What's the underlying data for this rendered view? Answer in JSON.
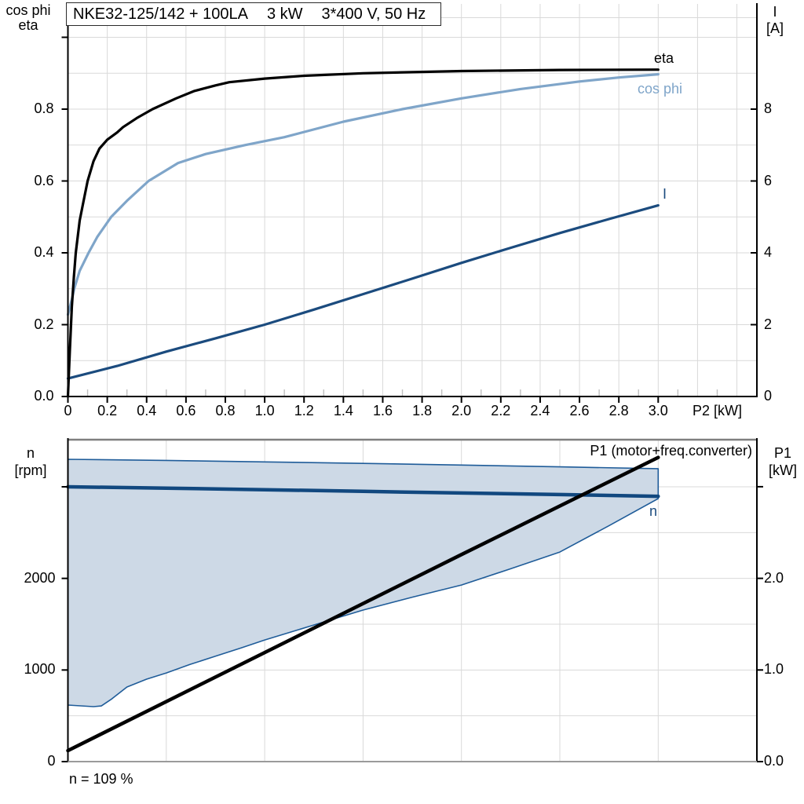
{
  "colors": {
    "eta": "#000000",
    "cos_phi": "#7fa5c9",
    "current": "#1b4b7e",
    "n_line": "#11487f",
    "p1_line": "#000000",
    "envelope_fill": "#cdd9e6",
    "envelope_border": "#1f5c99",
    "grid": "#d9d9d9",
    "grid_minor_stub": "#bfbfbf",
    "axis": "#000000",
    "border_gray": "#7f7f7f",
    "bottom_axis_gray": "#9b9b9b"
  },
  "top_chart": {
    "title_parts": [
      "NKE32-125/142 + 100LA",
      "3 kW",
      "3*400 V, 50 Hz"
    ],
    "axis_left_title_line1": "cos phi",
    "axis_left_title_line2": "eta",
    "axis_right_title_line1": "I",
    "axis_right_title_line2": "[A]",
    "x_axis_title": "P2 [kW]",
    "curve_label_eta": "eta",
    "curve_label_cos_phi": "cos phi",
    "curve_label_current": "I"
  },
  "bottom_chart": {
    "title": "P1 (motor+freq.converter)",
    "axis_left_title_line1": "n",
    "axis_left_title_line2": "[rpm]",
    "axis_right_title_line1": "P1",
    "axis_right_title_line2": "[kW]",
    "curve_label_n": "n",
    "footnote": "n = 109 %"
  },
  "chart_data": [
    {
      "type": "line",
      "title": "NKE32-125/142 + 100LA  3 kW  3*400 V, 50 Hz",
      "x_axis": {
        "label": "P2 [kW]",
        "min": 0,
        "max": 3.5,
        "ticks": [
          {
            "v": 0,
            "label": "0"
          },
          {
            "v": 0.2,
            "label": "0.2"
          },
          {
            "v": 0.4,
            "label": "0.4"
          },
          {
            "v": 0.6,
            "label": "0.6"
          },
          {
            "v": 0.8,
            "label": "0.8"
          },
          {
            "v": 1.0,
            "label": "1.0"
          },
          {
            "v": 1.2,
            "label": "1.2"
          },
          {
            "v": 1.4,
            "label": "1.4"
          },
          {
            "v": 1.6,
            "label": "1.6"
          },
          {
            "v": 1.8,
            "label": "1.8"
          },
          {
            "v": 2.0,
            "label": "2.0"
          },
          {
            "v": 2.2,
            "label": "2.2"
          },
          {
            "v": 2.4,
            "label": "2.4"
          },
          {
            "v": 2.6,
            "label": "2.6"
          },
          {
            "v": 2.8,
            "label": "2.8"
          },
          {
            "v": 3.0,
            "label": "3.0"
          }
        ],
        "grid_step": 0.2,
        "minor_tick_step": 0.1
      },
      "y_left_axis": {
        "label": "cos phi / eta",
        "min": 0,
        "max": 1.05,
        "grid_step": 0.1,
        "ticks": [
          {
            "v": 0,
            "label": "0.0"
          },
          {
            "v": 0.2,
            "label": "0.2"
          },
          {
            "v": 0.4,
            "label": "0.4"
          },
          {
            "v": 0.6,
            "label": "0.6"
          },
          {
            "v": 0.8,
            "label": "0.8"
          }
        ],
        "unlabeled_tick_values": [
          1.0
        ]
      },
      "y_right_axis": {
        "label": "I [A]",
        "min": 0,
        "max": 10.5,
        "ticks": [
          {
            "v": 0,
            "label": "0"
          },
          {
            "v": 2,
            "label": "2"
          },
          {
            "v": 4,
            "label": "4"
          },
          {
            "v": 6,
            "label": "6"
          },
          {
            "v": 8,
            "label": "8"
          }
        ]
      },
      "series": [
        {
          "key": "cos_phi",
          "name": "cos phi",
          "axis": "left",
          "color": "#7fa5c9",
          "points": [
            [
              0,
              0.228
            ],
            [
              0.02,
              0.27
            ],
            [
              0.032,
              0.3
            ],
            [
              0.06,
              0.35
            ],
            [
              0.105,
              0.4
            ],
            [
              0.15,
              0.445
            ],
            [
              0.22,
              0.5
            ],
            [
              0.3,
              0.545
            ],
            [
              0.41,
              0.6
            ],
            [
              0.56,
              0.65
            ],
            [
              0.7,
              0.675
            ],
            [
              0.9,
              0.7
            ],
            [
              1.1,
              0.722
            ],
            [
              1.4,
              0.765
            ],
            [
              1.7,
              0.8
            ],
            [
              2.0,
              0.83
            ],
            [
              2.3,
              0.856
            ],
            [
              2.6,
              0.877
            ],
            [
              2.8,
              0.888
            ],
            [
              3.0,
              0.897
            ]
          ]
        },
        {
          "key": "current",
          "name": "I",
          "axis": "right",
          "color": "#1b4b7e",
          "points": [
            [
              0,
              0.5
            ],
            [
              0.25,
              0.85
            ],
            [
              0.5,
              1.25
            ],
            [
              0.75,
              1.62
            ],
            [
              1.0,
              2.0
            ],
            [
              1.25,
              2.42
            ],
            [
              1.5,
              2.85
            ],
            [
              1.75,
              3.28
            ],
            [
              2.0,
              3.72
            ],
            [
              2.25,
              4.14
            ],
            [
              2.5,
              4.55
            ],
            [
              2.75,
              4.94
            ],
            [
              3.0,
              5.32
            ]
          ]
        },
        {
          "key": "eta",
          "name": "eta",
          "axis": "left",
          "color": "#000000",
          "points": [
            [
              0,
              0
            ],
            [
              0.01,
              0.13
            ],
            [
              0.02,
              0.25
            ],
            [
              0.03,
              0.33
            ],
            [
              0.04,
              0.4
            ],
            [
              0.06,
              0.49
            ],
            [
              0.08,
              0.545
            ],
            [
              0.1,
              0.6
            ],
            [
              0.13,
              0.655
            ],
            [
              0.16,
              0.69
            ],
            [
              0.2,
              0.715
            ],
            [
              0.25,
              0.735
            ],
            [
              0.28,
              0.75
            ],
            [
              0.35,
              0.775
            ],
            [
              0.43,
              0.8
            ],
            [
              0.55,
              0.83
            ],
            [
              0.64,
              0.85
            ],
            [
              0.75,
              0.866
            ],
            [
              0.82,
              0.875
            ],
            [
              1.0,
              0.885
            ],
            [
              1.2,
              0.893
            ],
            [
              1.5,
              0.9
            ],
            [
              2.0,
              0.906
            ],
            [
              2.5,
              0.909
            ],
            [
              3.0,
              0.91
            ]
          ]
        }
      ]
    },
    {
      "type": "line+area",
      "title": "P1 (motor+freq.converter)",
      "x_axis": {
        "label": "",
        "min": 0,
        "max": 3.5,
        "grid_step": 0.5,
        "ticks": []
      },
      "y_left_axis": {
        "label": "n [rpm]",
        "min": 0,
        "max": 3510,
        "grid_step": 500,
        "ticks": [
          {
            "v": 0,
            "label": "0"
          },
          {
            "v": 1000,
            "label": "1000"
          },
          {
            "v": 2000,
            "label": "2000"
          }
        ],
        "unlabeled_tick_values": [
          3000
        ]
      },
      "y_right_axis": {
        "label": "P1 [kW]",
        "min": 0,
        "max": 3.51,
        "ticks": [
          {
            "v": 0,
            "label": "0.0"
          },
          {
            "v": 1,
            "label": "1.0"
          },
          {
            "v": 2,
            "label": "2.0"
          }
        ],
        "unlabeled_tick_values": [
          3
        ]
      },
      "area": {
        "name": "speed operating range",
        "axis": "left",
        "fill": "#cdd9e6",
        "border": "#1f5c99",
        "upper": [
          [
            0,
            3300
          ],
          [
            0.5,
            3288
          ],
          [
            1.0,
            3272
          ],
          [
            1.5,
            3255
          ],
          [
            2.0,
            3237
          ],
          [
            2.5,
            3218
          ],
          [
            3.0,
            3198
          ]
        ],
        "lower": [
          [
            0,
            617
          ],
          [
            0.13,
            600
          ],
          [
            0.17,
            608
          ],
          [
            0.22,
            680
          ],
          [
            0.3,
            814
          ],
          [
            0.4,
            900
          ],
          [
            0.5,
            968
          ],
          [
            0.62,
            1060
          ],
          [
            0.75,
            1150
          ],
          [
            0.88,
            1240
          ],
          [
            1.0,
            1328
          ],
          [
            1.25,
            1491
          ],
          [
            1.5,
            1654
          ],
          [
            1.75,
            1795
          ],
          [
            2.0,
            1928
          ],
          [
            2.25,
            2105
          ],
          [
            2.5,
            2288
          ],
          [
            2.75,
            2575
          ],
          [
            3.0,
            2871
          ]
        ]
      },
      "series": [
        {
          "key": "n",
          "name": "n",
          "axis": "left",
          "color": "#11487f",
          "points": [
            [
              0,
              3000
            ],
            [
              0.5,
              2985
            ],
            [
              1.0,
              2968
            ],
            [
              1.5,
              2950
            ],
            [
              2.0,
              2932
            ],
            [
              2.5,
              2915
            ],
            [
              3.0,
              2896
            ]
          ]
        },
        {
          "key": "p1",
          "name": "P1 (motor+freq.converter)",
          "axis": "right",
          "color": "#000000",
          "points": [
            [
              0,
              0.12
            ],
            [
              1.0,
              1.19
            ],
            [
              2.0,
              2.26
            ],
            [
              3.0,
              3.32
            ]
          ]
        }
      ],
      "footnote": "n = 109 %"
    }
  ]
}
